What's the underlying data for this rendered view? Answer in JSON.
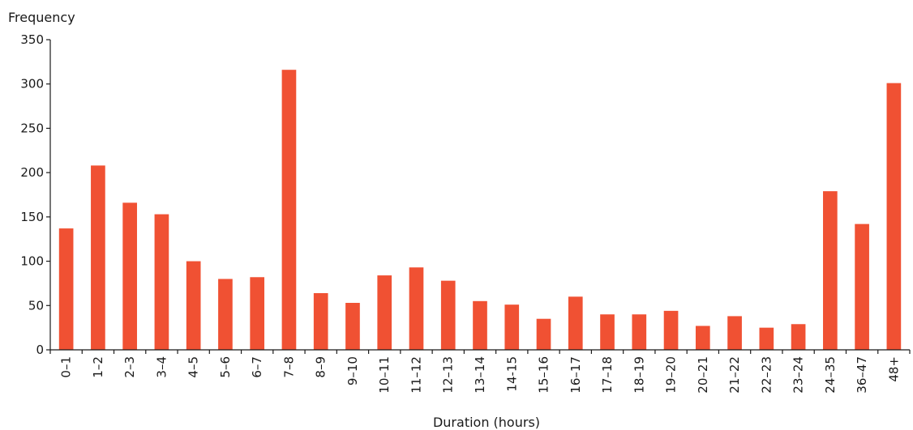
{
  "chart_data": {
    "type": "bar",
    "ylabel": "Frequency",
    "xlabel": "Duration (hours)",
    "ylim": [
      0,
      350
    ],
    "yticks": [
      0,
      50,
      100,
      150,
      200,
      250,
      300,
      350
    ],
    "grid": false,
    "bar_color": "#f05133",
    "categories": [
      "0–1",
      "1–2",
      "2–3",
      "3–4",
      "4–5",
      "5–6",
      "6–7",
      "7–8",
      "8–9",
      "9–10",
      "10–11",
      "11–12",
      "12–13",
      "13–14",
      "14-15",
      "15–16",
      "16–17",
      "17–18",
      "18–19",
      "19–20",
      "20–21",
      "21–22",
      "22–23",
      "23–24",
      "24–35",
      "36–47",
      "48+"
    ],
    "values": [
      137,
      208,
      166,
      153,
      100,
      80,
      82,
      316,
      64,
      53,
      84,
      93,
      78,
      55,
      51,
      35,
      60,
      40,
      40,
      44,
      27,
      38,
      25,
      29,
      179,
      142,
      301
    ]
  }
}
